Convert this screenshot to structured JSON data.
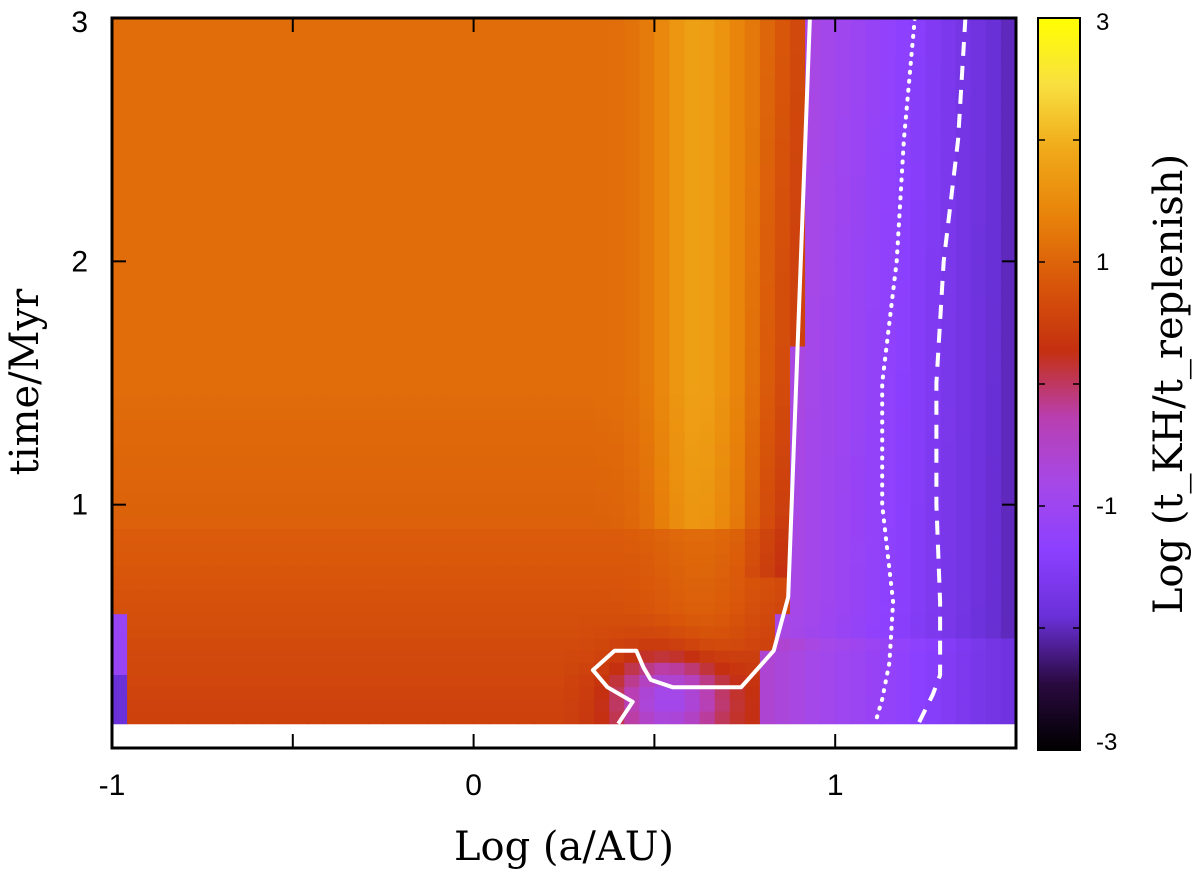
{
  "chart_data": {
    "type": "heatmap",
    "title": "",
    "xlabel": "Log (a/AU)",
    "ylabel": "time/Myr",
    "colorbar_label": "Log (t_KH/t_replenish)",
    "x_range": [
      -1,
      1.5
    ],
    "y_range": [
      0,
      3
    ],
    "x_ticks": [
      -1,
      0,
      1
    ],
    "x_tick_labels": [
      "-1",
      "0",
      "1"
    ],
    "x_minor_ticks": [
      -0.5,
      0.5
    ],
    "y_ticks": [
      1,
      2,
      3
    ],
    "y_tick_labels": [
      "1",
      "2",
      "3"
    ],
    "colorbar_range": [
      -3,
      3
    ],
    "colorbar_ticks": [
      3,
      1,
      -1,
      -3
    ],
    "colorbar_tick_labels": [
      "3",
      "1",
      "-1",
      "-3"
    ],
    "colormap": [
      "#000000",
      "#2a0a40",
      "#6a30d8",
      "#8c40ff",
      "#a648e8",
      "#b93fb0",
      "#c43010",
      "#d8560a",
      "#e8820a",
      "#f0a818",
      "#f8e040",
      "#ffff00"
    ],
    "data_coverage_y": [
      0.1,
      3
    ],
    "contours": [
      {
        "style": "solid",
        "color": "#ffffff",
        "points": [
          [
            0.93,
            3.0
          ],
          [
            0.87,
            0.62
          ],
          [
            0.83,
            0.4
          ],
          [
            0.74,
            0.25
          ],
          [
            0.55,
            0.25
          ],
          [
            0.49,
            0.28
          ],
          [
            0.47,
            0.33
          ],
          [
            0.45,
            0.4
          ],
          [
            0.39,
            0.4
          ],
          [
            0.33,
            0.32
          ],
          [
            0.37,
            0.25
          ],
          [
            0.44,
            0.19
          ],
          [
            0.4,
            0.1
          ]
        ]
      },
      {
        "style": "dotted",
        "color": "#ffffff",
        "points": [
          [
            1.22,
            3.0
          ],
          [
            1.19,
            2.5
          ],
          [
            1.17,
            2.0
          ],
          [
            1.13,
            1.5
          ],
          [
            1.13,
            1.0
          ],
          [
            1.16,
            0.6
          ],
          [
            1.15,
            0.35
          ],
          [
            1.13,
            0.2
          ],
          [
            1.11,
            0.1
          ]
        ]
      },
      {
        "style": "dashed",
        "color": "#ffffff",
        "points": [
          [
            1.36,
            3.0
          ],
          [
            1.34,
            2.5
          ],
          [
            1.3,
            2.0
          ],
          [
            1.28,
            1.5
          ],
          [
            1.28,
            1.0
          ],
          [
            1.29,
            0.6
          ],
          [
            1.29,
            0.3
          ],
          [
            1.27,
            0.22
          ],
          [
            1.23,
            0.1
          ]
        ]
      }
    ]
  }
}
